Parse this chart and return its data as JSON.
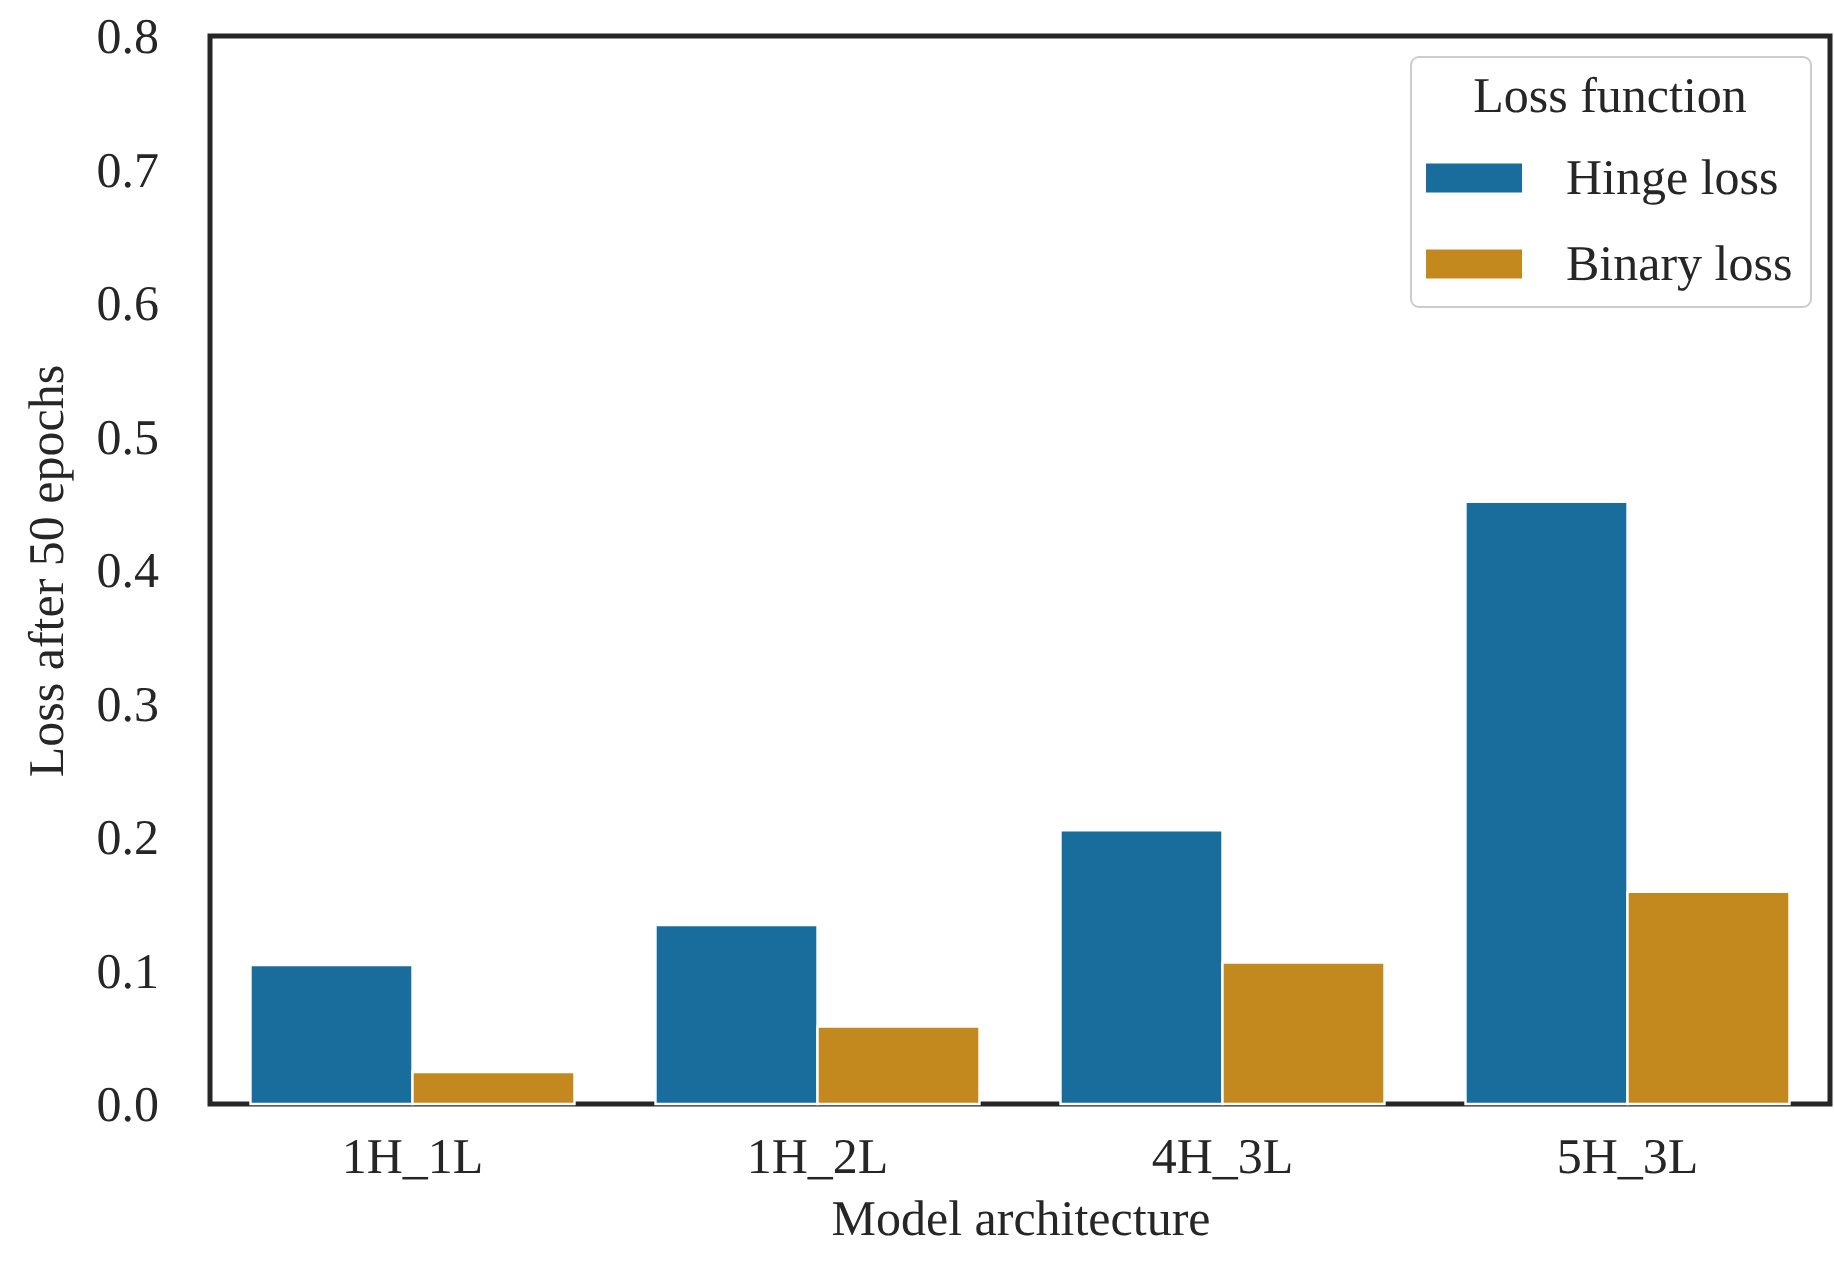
{
  "chart_data": {
    "type": "bar",
    "xlabel": "Model architecture",
    "ylabel": "Loss after 50 epochs",
    "legend_title": "Loss function",
    "categories": [
      "1H_1L",
      "1H_2L",
      "4H_3L",
      "5H_3L"
    ],
    "series": [
      {
        "name": "Hinge loss",
        "color": "#196d9d",
        "values": [
          0.104,
          0.134,
          0.205,
          0.451
        ]
      },
      {
        "name": "Binary loss",
        "color": "#c3891f",
        "values": [
          0.024,
          0.058,
          0.106,
          0.159
        ]
      }
    ],
    "ylim": [
      0,
      0.8
    ],
    "yticks": [
      {
        "value": 0,
        "label": "0.0"
      },
      0.1,
      0.2,
      0.3,
      0.4,
      0.5,
      0.6,
      0.7,
      0.8
    ],
    "grid": false,
    "legend": "top right"
  }
}
